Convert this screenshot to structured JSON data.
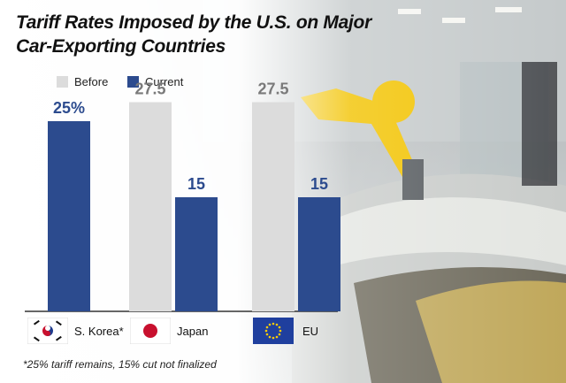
{
  "title_line1": "Tariff Rates Imposed by the U.S. on Major",
  "title_line2": "Car-Exporting Countries",
  "legend": {
    "before": "Before",
    "current": "Current"
  },
  "colors": {
    "before": "#dcdcdc",
    "current": "#2c4b8e",
    "before_label": "#7a7a7a",
    "current_label": "#2c4b8e"
  },
  "footnote": "*25% tariff remains, 15% cut not finalized",
  "countries": [
    {
      "label": "S. Korea*",
      "flag": "korea-flag-icon"
    },
    {
      "label": "Japan",
      "flag": "japan-flag-icon"
    },
    {
      "label": "EU",
      "flag": "eu-flag-icon"
    }
  ],
  "chart_data": {
    "type": "bar",
    "categories": [
      "S. Korea*",
      "Japan",
      "EU"
    ],
    "series": [
      {
        "name": "Before",
        "values": [
          null,
          27.5,
          27.5
        ],
        "labels": [
          "",
          "27.5",
          "27.5"
        ]
      },
      {
        "name": "Current",
        "values": [
          25,
          15,
          15
        ],
        "labels": [
          "25%",
          "15",
          "15"
        ]
      }
    ],
    "ylim": [
      0,
      30
    ],
    "grid": false,
    "legend_position": "top-left"
  }
}
